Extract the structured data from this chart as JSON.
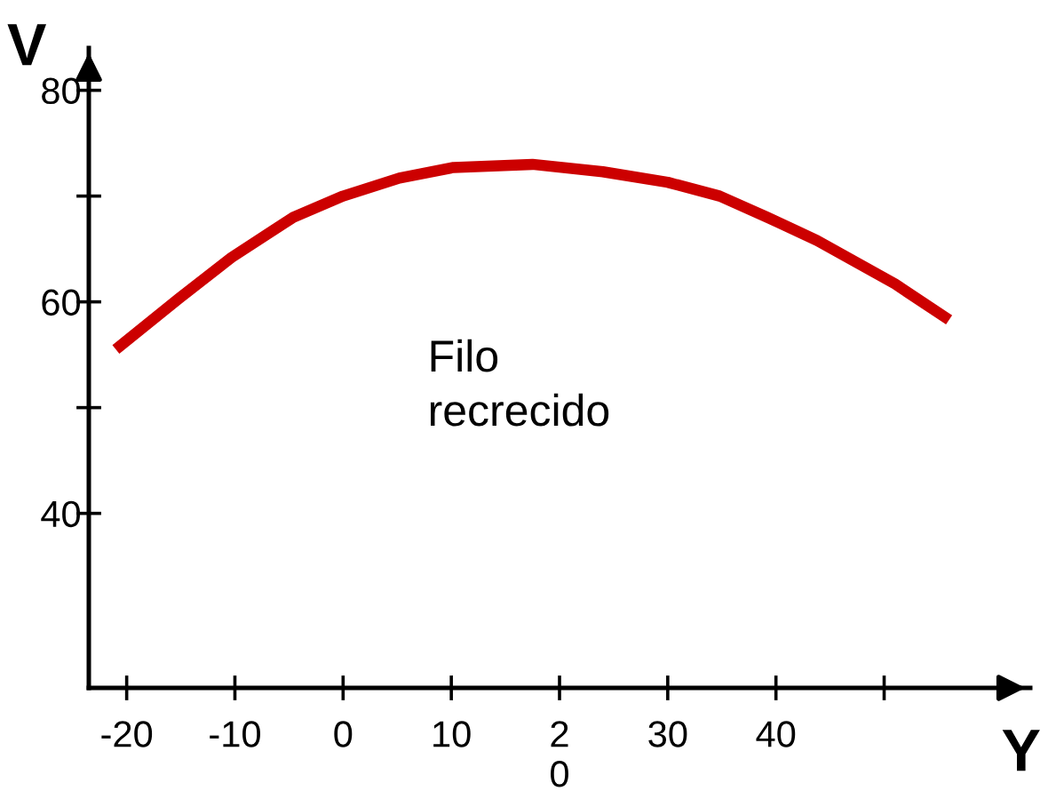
{
  "chart_data": {
    "type": "line",
    "xlabel": "Y",
    "ylabel": "V",
    "annotations": [
      "Filo\nrecrecido"
    ],
    "xlim": [
      -23.5,
      63.5
    ],
    "ylim": [
      23.5,
      84
    ],
    "xticks": [
      -20,
      -10,
      0,
      10,
      {
        "value": 20,
        "label": "2\n0"
      },
      30,
      40,
      {
        "value": 50,
        "label": null
      }
    ],
    "yticks": [
      {
        "value": 40,
        "label": "40"
      },
      {
        "value": 50,
        "label": null
      },
      {
        "value": 60,
        "label": "60"
      },
      {
        "value": 70,
        "label": null
      },
      {
        "value": 80,
        "label": "80"
      }
    ],
    "grid": false,
    "marker": "none",
    "line_style": "solid",
    "series": [
      {
        "color": "#cc0000",
        "x": [
          -21,
          -15.2,
          -10.3,
          -4.6,
          0,
          5.2,
          10.2,
          17.5,
          24,
          30,
          34.8,
          39.2,
          43.8,
          51,
          56
        ],
        "values": [
          55.5,
          60.3,
          64.2,
          68,
          70,
          71.7,
          72.7,
          73,
          72.3,
          71.3,
          70,
          68,
          65.8,
          61.7,
          58.3
        ]
      }
    ]
  }
}
